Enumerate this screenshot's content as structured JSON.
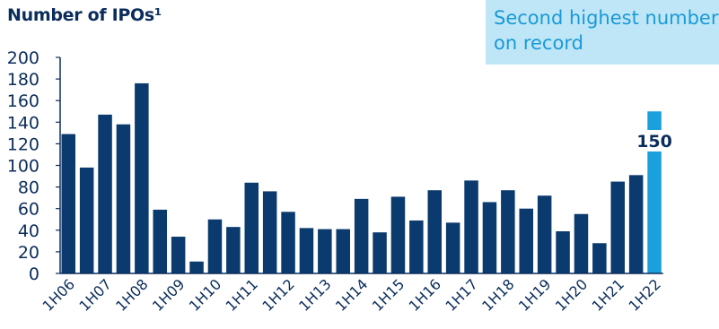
{
  "chart_data": {
    "type": "bar",
    "title": "Number of IPOs¹",
    "callout": "Second highest number on record",
    "ylim": [
      0,
      200
    ],
    "yticks": [
      "0",
      "20",
      "40",
      "60",
      "80",
      "100",
      "120",
      "140",
      "160",
      "180",
      "200"
    ],
    "categories": [
      "1H06",
      "2H06",
      "1H07",
      "2H07",
      "1H08",
      "2H08",
      "1H09",
      "2H09",
      "1H10",
      "2H10",
      "1H11",
      "2H11",
      "1H12",
      "2H12",
      "1H13",
      "2H13",
      "1H14",
      "2H14",
      "1H15",
      "2H15",
      "1H16",
      "2H16",
      "1H17",
      "2H17",
      "1H18",
      "2H18",
      "1H19",
      "2H19",
      "1H20",
      "2H20",
      "1H21",
      "2H21",
      "1H22"
    ],
    "tick_labels": [
      "1H06",
      "1H07",
      "1H08",
      "1H09",
      "1H10",
      "1H11",
      "1H12",
      "1H13",
      "1H14",
      "1H15",
      "1H16",
      "1H17",
      "1H18",
      "1H19",
      "1H20",
      "1H21",
      "1H22"
    ],
    "values": [
      129,
      98,
      147,
      138,
      176,
      59,
      34,
      11,
      50,
      43,
      84,
      76,
      57,
      42,
      41,
      41,
      69,
      38,
      71,
      49,
      77,
      47,
      86,
      66,
      77,
      60,
      72,
      39,
      55,
      28,
      85,
      91,
      150
    ],
    "highlight_value_label": "150",
    "colors": {
      "bar": "#0b3a6e",
      "highlight": "#1aa0dc",
      "axis": "#0b2d5b"
    },
    "grid": false
  }
}
